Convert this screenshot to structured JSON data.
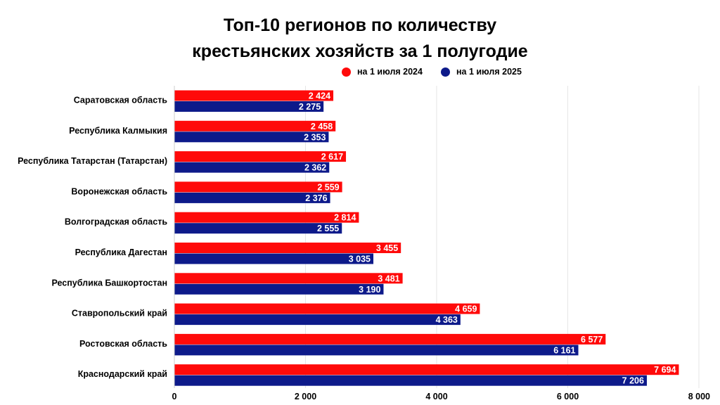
{
  "chart_data": {
    "type": "bar",
    "orientation": "horizontal",
    "title_line1": "Топ-10 регионов по количеству",
    "title_line2": "крестьянских хозяйств за 1 полугодие",
    "categories": [
      "Саратовская область",
      "Республика Калмыкия",
      "Республика Татарстан (Татарстан)",
      "Воронежская область",
      "Волгоградская область",
      "Республика Дагестан",
      "Республика Башкортостан",
      "Ставропольский край",
      "Ростовская область",
      "Краснодарский край"
    ],
    "series": [
      {
        "name": "на 1 июля 2024",
        "color": "#ff0a0a",
        "values": [
          2424,
          2458,
          2617,
          2559,
          2814,
          3455,
          3481,
          4659,
          6577,
          7694
        ],
        "labels": [
          "2 424",
          "2 458",
          "2 617",
          "2 559",
          "2 814",
          "3 455",
          "3 481",
          "4 659",
          "6 577",
          "7 694"
        ]
      },
      {
        "name": "на 1 июля 2025",
        "color": "#0d1a8a",
        "values": [
          2275,
          2353,
          2362,
          2376,
          2555,
          3035,
          3190,
          4363,
          6161,
          7206
        ],
        "labels": [
          "2 275",
          "2 353",
          "2 362",
          "2 376",
          "2 555",
          "3 035",
          "3 190",
          "4 363",
          "6 161",
          "7 206"
        ]
      }
    ],
    "xlim": [
      0,
      8000
    ],
    "xticks": [
      0,
      2000,
      4000,
      6000,
      8000
    ],
    "xtick_labels": [
      "0",
      "2 000",
      "4 000",
      "6 000",
      "8 000"
    ],
    "grid": true,
    "legend_position": "top-right"
  }
}
